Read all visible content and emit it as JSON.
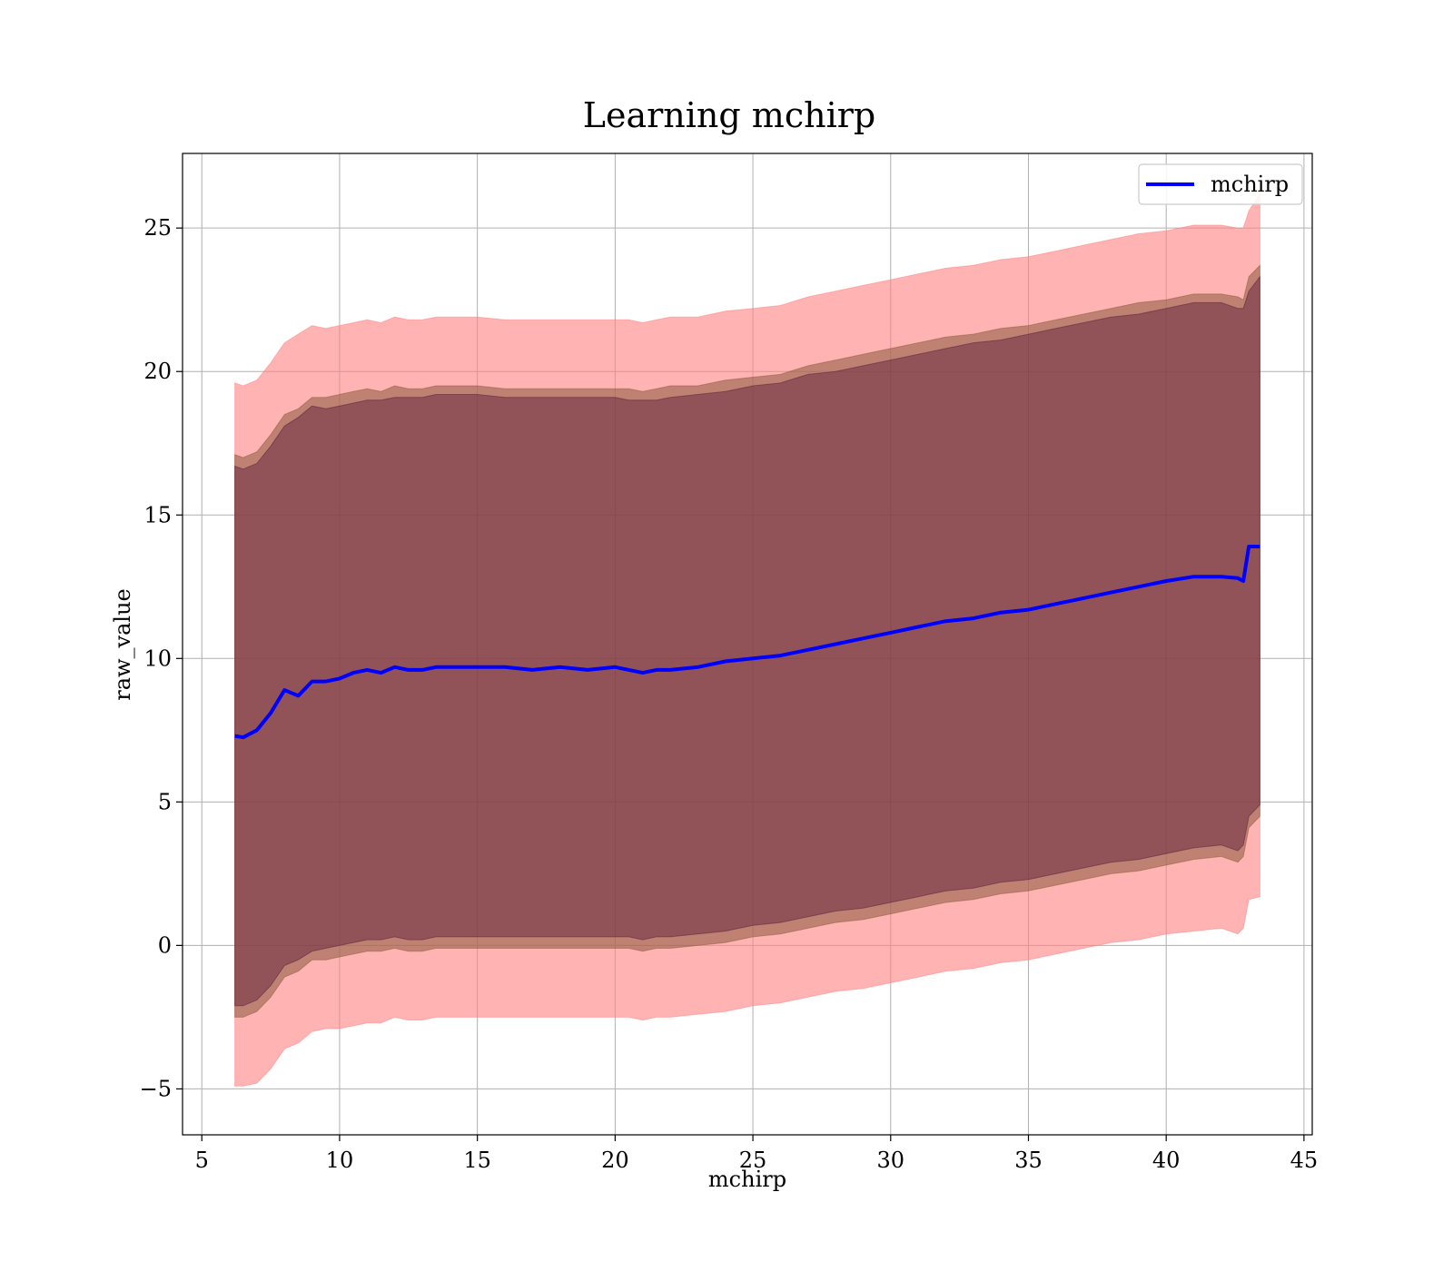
{
  "chart_data": {
    "type": "line",
    "title": "Learning mchirp",
    "xlabel": "mchirp",
    "ylabel": "raw_value",
    "xlim": [
      4.3,
      45.3
    ],
    "ylim": [
      -6.6,
      27.6
    ],
    "xticks": [
      5,
      10,
      15,
      20,
      25,
      30,
      35,
      40,
      45
    ],
    "xtick_labels": [
      "5",
      "10",
      "15",
      "20",
      "25",
      "30",
      "35",
      "40",
      "45"
    ],
    "yticks": [
      -5,
      0,
      5,
      10,
      15,
      20,
      25
    ],
    "ytick_labels": [
      "−5",
      "0",
      "5",
      "10",
      "15",
      "20",
      "25"
    ],
    "grid": true,
    "legend": {
      "position": "upper right",
      "entries": [
        "mchirp"
      ]
    },
    "colors": {
      "line": "#0000ff",
      "band_outer": "#ff8080",
      "band_mid": "#8b5a3c",
      "band_inner": "#5a1a3a"
    },
    "series": [
      {
        "name": "mchirp",
        "kind": "line",
        "x": [
          6.2,
          6.5,
          7,
          7.5,
          8,
          8.5,
          9,
          9.5,
          10,
          10.5,
          11,
          11.5,
          12,
          12.5,
          13,
          13.5,
          14,
          15,
          16,
          17,
          18,
          19,
          20,
          20.5,
          21,
          21.5,
          22,
          23,
          24,
          25,
          26,
          27,
          28,
          29,
          30,
          31,
          32,
          33,
          34,
          35,
          36,
          37,
          38,
          39,
          40,
          41,
          42,
          42.6,
          42.8,
          43,
          43.4
        ],
        "y": [
          7.3,
          7.25,
          7.5,
          8.1,
          8.9,
          8.7,
          9.2,
          9.2,
          9.3,
          9.5,
          9.6,
          9.5,
          9.7,
          9.6,
          9.6,
          9.7,
          9.7,
          9.7,
          9.7,
          9.6,
          9.7,
          9.6,
          9.7,
          9.6,
          9.5,
          9.6,
          9.6,
          9.7,
          9.9,
          10.0,
          10.1,
          10.3,
          10.5,
          10.7,
          10.9,
          11.1,
          11.3,
          11.4,
          11.6,
          11.7,
          11.9,
          12.1,
          12.3,
          12.5,
          12.7,
          12.85,
          12.85,
          12.8,
          12.7,
          13.9,
          13.9
        ]
      }
    ],
    "bands": [
      {
        "level": "outer",
        "x": [
          6.2,
          6.5,
          7,
          7.5,
          8,
          8.5,
          9,
          9.5,
          10,
          10.5,
          11,
          11.5,
          12,
          12.5,
          13,
          13.5,
          14,
          15,
          16,
          17,
          18,
          19,
          20,
          20.5,
          21,
          21.5,
          22,
          23,
          24,
          25,
          26,
          27,
          28,
          29,
          30,
          31,
          32,
          33,
          34,
          35,
          36,
          37,
          38,
          39,
          40,
          41,
          42,
          42.6,
          42.8,
          43,
          43.4
        ],
        "upper": [
          19.6,
          19.5,
          19.7,
          20.3,
          21.0,
          21.3,
          21.6,
          21.5,
          21.6,
          21.7,
          21.8,
          21.7,
          21.9,
          21.8,
          21.8,
          21.9,
          21.9,
          21.9,
          21.8,
          21.8,
          21.8,
          21.8,
          21.8,
          21.8,
          21.7,
          21.8,
          21.9,
          21.9,
          22.1,
          22.2,
          22.3,
          22.6,
          22.8,
          23.0,
          23.2,
          23.4,
          23.6,
          23.7,
          23.9,
          24.0,
          24.2,
          24.4,
          24.6,
          24.8,
          24.9,
          25.1,
          25.1,
          25.0,
          25.0,
          25.6,
          26.2
        ],
        "lower": [
          -4.9,
          -4.9,
          -4.8,
          -4.3,
          -3.6,
          -3.4,
          -3.0,
          -2.9,
          -2.9,
          -2.8,
          -2.7,
          -2.7,
          -2.5,
          -2.6,
          -2.6,
          -2.5,
          -2.5,
          -2.5,
          -2.5,
          -2.5,
          -2.5,
          -2.5,
          -2.5,
          -2.5,
          -2.6,
          -2.5,
          -2.5,
          -2.4,
          -2.3,
          -2.1,
          -2.0,
          -1.8,
          -1.6,
          -1.5,
          -1.3,
          -1.1,
          -0.9,
          -0.8,
          -0.6,
          -0.5,
          -0.3,
          -0.1,
          0.1,
          0.2,
          0.4,
          0.5,
          0.6,
          0.4,
          0.6,
          1.6,
          1.7
        ]
      },
      {
        "level": "mid",
        "x": [
          6.2,
          6.5,
          7,
          7.5,
          8,
          8.5,
          9,
          9.5,
          10,
          10.5,
          11,
          11.5,
          12,
          12.5,
          13,
          13.5,
          14,
          15,
          16,
          17,
          18,
          19,
          20,
          20.5,
          21,
          21.5,
          22,
          23,
          24,
          25,
          26,
          27,
          28,
          29,
          30,
          31,
          32,
          33,
          34,
          35,
          36,
          37,
          38,
          39,
          40,
          41,
          42,
          42.6,
          42.8,
          43,
          43.4
        ],
        "upper": [
          17.1,
          17.0,
          17.2,
          17.8,
          18.5,
          18.7,
          19.1,
          19.1,
          19.2,
          19.3,
          19.4,
          19.3,
          19.5,
          19.4,
          19.4,
          19.5,
          19.5,
          19.5,
          19.4,
          19.4,
          19.4,
          19.4,
          19.4,
          19.4,
          19.3,
          19.4,
          19.5,
          19.5,
          19.7,
          19.8,
          19.9,
          20.2,
          20.4,
          20.6,
          20.8,
          21.0,
          21.2,
          21.3,
          21.5,
          21.6,
          21.8,
          22.0,
          22.2,
          22.4,
          22.5,
          22.7,
          22.7,
          22.6,
          22.5,
          23.3,
          23.7
        ],
        "lower": [
          -2.5,
          -2.5,
          -2.3,
          -1.8,
          -1.1,
          -0.9,
          -0.5,
          -0.5,
          -0.4,
          -0.3,
          -0.2,
          -0.2,
          -0.1,
          -0.2,
          -0.2,
          -0.1,
          -0.1,
          -0.1,
          -0.1,
          -0.1,
          -0.1,
          -0.1,
          -0.1,
          -0.1,
          -0.2,
          -0.1,
          -0.1,
          0.0,
          0.1,
          0.3,
          0.4,
          0.6,
          0.8,
          0.9,
          1.1,
          1.3,
          1.5,
          1.6,
          1.8,
          1.9,
          2.1,
          2.3,
          2.5,
          2.6,
          2.8,
          3.0,
          3.1,
          2.9,
          3.1,
          4.1,
          4.5
        ]
      },
      {
        "level": "inner",
        "x": [
          6.2,
          6.5,
          7,
          7.5,
          8,
          8.5,
          9,
          9.5,
          10,
          10.5,
          11,
          11.5,
          12,
          12.5,
          13,
          13.5,
          14,
          15,
          16,
          17,
          18,
          19,
          20,
          20.5,
          21,
          21.5,
          22,
          23,
          24,
          25,
          26,
          27,
          28,
          29,
          30,
          31,
          32,
          33,
          34,
          35,
          36,
          37,
          38,
          39,
          40,
          41,
          42,
          42.6,
          42.8,
          43,
          43.4
        ],
        "upper": [
          16.7,
          16.6,
          16.8,
          17.4,
          18.1,
          18.4,
          18.8,
          18.7,
          18.8,
          18.9,
          19.0,
          19.0,
          19.1,
          19.1,
          19.1,
          19.2,
          19.2,
          19.2,
          19.1,
          19.1,
          19.1,
          19.1,
          19.1,
          19.0,
          19.0,
          19.0,
          19.1,
          19.2,
          19.3,
          19.5,
          19.6,
          19.9,
          20.0,
          20.2,
          20.4,
          20.6,
          20.8,
          21.0,
          21.1,
          21.3,
          21.5,
          21.7,
          21.9,
          22.0,
          22.2,
          22.4,
          22.4,
          22.2,
          22.2,
          22.8,
          23.3
        ],
        "lower": [
          -2.1,
          -2.1,
          -1.9,
          -1.4,
          -0.7,
          -0.5,
          -0.2,
          -0.1,
          0.0,
          0.1,
          0.2,
          0.2,
          0.3,
          0.2,
          0.2,
          0.3,
          0.3,
          0.3,
          0.3,
          0.3,
          0.3,
          0.3,
          0.3,
          0.3,
          0.2,
          0.3,
          0.3,
          0.4,
          0.5,
          0.7,
          0.8,
          1.0,
          1.2,
          1.3,
          1.5,
          1.7,
          1.9,
          2.0,
          2.2,
          2.3,
          2.5,
          2.7,
          2.9,
          3.0,
          3.2,
          3.4,
          3.5,
          3.3,
          3.5,
          4.5,
          4.9
        ]
      }
    ]
  }
}
